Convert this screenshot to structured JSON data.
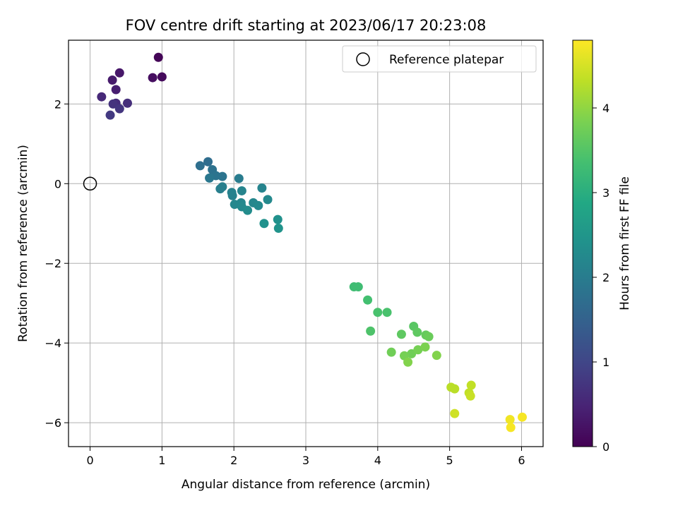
{
  "chart_data": {
    "type": "scatter",
    "title": "FOV centre drift starting at 2023/06/17 20:23:08",
    "xlabel": "Angular distance from reference (arcmin)",
    "ylabel": "Rotation from reference (arcmin)",
    "xlim": [
      -0.3,
      6.3
    ],
    "ylim": [
      -6.6,
      3.6
    ],
    "xticks": [
      0,
      1,
      2,
      3,
      4,
      5,
      6
    ],
    "yticks": [
      -6,
      -4,
      -2,
      0,
      2
    ],
    "xtick_labels": [
      "0",
      "1",
      "2",
      "3",
      "4",
      "5",
      "6"
    ],
    "ytick_labels": [
      "−6",
      "−4",
      "−2",
      "0",
      "2"
    ],
    "grid": true,
    "colormap": "viridis",
    "colorbar": {
      "label": "Hours from first FF file",
      "range": [
        0,
        4.8
      ],
      "ticks": [
        0,
        1,
        2,
        3,
        4
      ],
      "tick_labels": [
        "0",
        "1",
        "2",
        "3",
        "4"
      ]
    },
    "legend": {
      "position": "top-right",
      "entries": [
        "Reference platepar"
      ]
    },
    "reference_point": {
      "x": 0,
      "y": 0,
      "marker": "open-circle"
    },
    "series": [
      {
        "points": [
          {
            "x": 0.95,
            "y": 3.17,
            "c": 0.05
          },
          {
            "x": 1.0,
            "y": 2.68,
            "c": 0.12
          },
          {
            "x": 0.87,
            "y": 2.66,
            "c": 0.18
          },
          {
            "x": 0.41,
            "y": 2.78,
            "c": 0.3
          },
          {
            "x": 0.31,
            "y": 2.6,
            "c": 0.35
          },
          {
            "x": 0.36,
            "y": 2.36,
            "c": 0.4
          },
          {
            "x": 0.16,
            "y": 2.18,
            "c": 0.55
          },
          {
            "x": 0.36,
            "y": 2.02,
            "c": 0.6
          },
          {
            "x": 0.52,
            "y": 2.02,
            "c": 0.65
          },
          {
            "x": 0.32,
            "y": 2.0,
            "c": 0.7
          },
          {
            "x": 0.41,
            "y": 1.88,
            "c": 0.75
          },
          {
            "x": 0.28,
            "y": 1.72,
            "c": 0.8
          },
          {
            "x": 1.64,
            "y": 0.55,
            "c": 1.7
          },
          {
            "x": 1.53,
            "y": 0.45,
            "c": 1.75
          },
          {
            "x": 1.7,
            "y": 0.35,
            "c": 1.8
          },
          {
            "x": 1.75,
            "y": 0.2,
            "c": 1.85
          },
          {
            "x": 1.84,
            "y": 0.18,
            "c": 1.85
          },
          {
            "x": 1.66,
            "y": 0.14,
            "c": 1.9
          },
          {
            "x": 2.07,
            "y": 0.13,
            "c": 2.0
          },
          {
            "x": 1.84,
            "y": -0.08,
            "c": 2.05
          },
          {
            "x": 1.81,
            "y": -0.13,
            "c": 2.05
          },
          {
            "x": 1.97,
            "y": -0.22,
            "c": 2.1
          },
          {
            "x": 1.98,
            "y": -0.3,
            "c": 2.1
          },
          {
            "x": 2.11,
            "y": -0.18,
            "c": 2.15
          },
          {
            "x": 2.39,
            "y": -0.11,
            "c": 2.15
          },
          {
            "x": 2.47,
            "y": -0.4,
            "c": 2.25
          },
          {
            "x": 2.27,
            "y": -0.48,
            "c": 2.2
          },
          {
            "x": 2.1,
            "y": -0.48,
            "c": 2.2
          },
          {
            "x": 2.01,
            "y": -0.52,
            "c": 2.2
          },
          {
            "x": 2.34,
            "y": -0.55,
            "c": 2.25
          },
          {
            "x": 2.11,
            "y": -0.58,
            "c": 2.25
          },
          {
            "x": 2.19,
            "y": -0.67,
            "c": 2.3
          },
          {
            "x": 2.61,
            "y": -0.9,
            "c": 2.4
          },
          {
            "x": 2.42,
            "y": -1.0,
            "c": 2.4
          },
          {
            "x": 2.62,
            "y": -1.12,
            "c": 2.45
          },
          {
            "x": 3.67,
            "y": -2.59,
            "c": 3.3
          },
          {
            "x": 3.73,
            "y": -2.59,
            "c": 3.3
          },
          {
            "x": 3.86,
            "y": -2.92,
            "c": 3.35
          },
          {
            "x": 4.0,
            "y": -3.23,
            "c": 3.4
          },
          {
            "x": 4.13,
            "y": -3.23,
            "c": 3.4
          },
          {
            "x": 3.9,
            "y": -3.7,
            "c": 3.45
          },
          {
            "x": 4.5,
            "y": -3.58,
            "c": 3.55
          },
          {
            "x": 4.55,
            "y": -3.73,
            "c": 3.6
          },
          {
            "x": 4.33,
            "y": -3.78,
            "c": 3.6
          },
          {
            "x": 4.67,
            "y": -3.8,
            "c": 3.65
          },
          {
            "x": 4.71,
            "y": -3.84,
            "c": 3.7
          },
          {
            "x": 4.19,
            "y": -4.23,
            "c": 3.75
          },
          {
            "x": 4.47,
            "y": -4.27,
            "c": 3.75
          },
          {
            "x": 4.37,
            "y": -4.32,
            "c": 3.8
          },
          {
            "x": 4.56,
            "y": -4.17,
            "c": 3.8
          },
          {
            "x": 4.66,
            "y": -4.1,
            "c": 3.85
          },
          {
            "x": 4.82,
            "y": -4.31,
            "c": 3.9
          },
          {
            "x": 4.42,
            "y": -4.48,
            "c": 3.9
          },
          {
            "x": 5.02,
            "y": -5.11,
            "c": 4.3
          },
          {
            "x": 5.07,
            "y": -5.15,
            "c": 4.3
          },
          {
            "x": 5.3,
            "y": -5.06,
            "c": 4.35
          },
          {
            "x": 5.27,
            "y": -5.25,
            "c": 4.35
          },
          {
            "x": 5.29,
            "y": -5.33,
            "c": 4.4
          },
          {
            "x": 5.07,
            "y": -5.77,
            "c": 4.45
          },
          {
            "x": 5.84,
            "y": -5.92,
            "c": 4.7
          },
          {
            "x": 6.01,
            "y": -5.86,
            "c": 4.75
          },
          {
            "x": 5.85,
            "y": -6.12,
            "c": 4.75
          }
        ]
      }
    ]
  }
}
